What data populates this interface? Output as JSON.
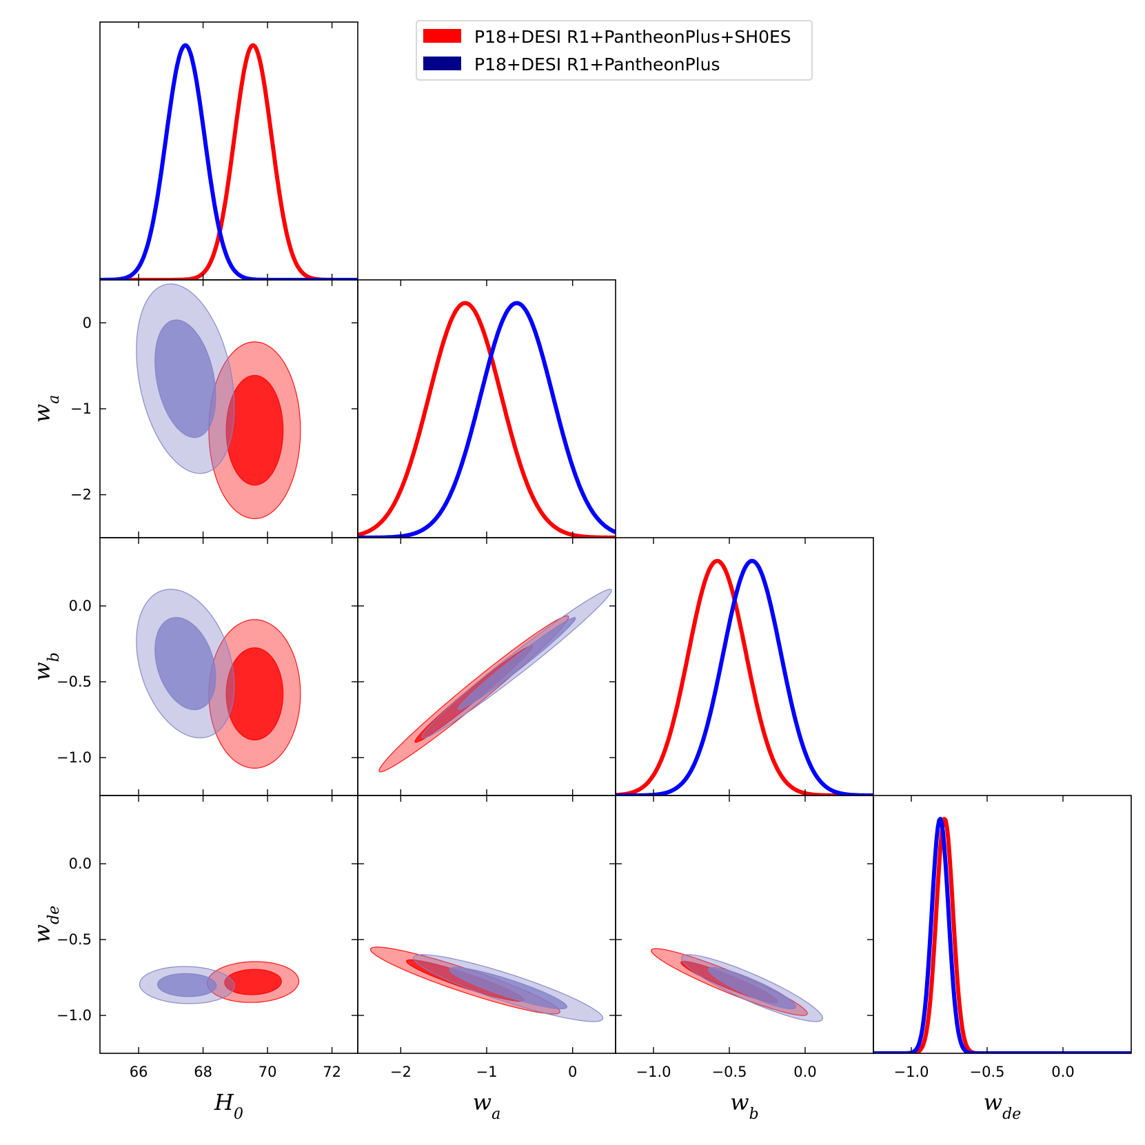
{
  "colors": {
    "series_a": "#ff0000",
    "series_b": "#0000ff",
    "series_b_legend": "#00008b",
    "series_b_fill": "#8080c8",
    "axes": "#000000",
    "legend_border": "#cccccc"
  },
  "chart_data": {
    "type": "triangle-corner-plot",
    "title": "",
    "legend": {
      "location": "top-center",
      "entries": [
        "P18+DESI R1+PantheonPlus+SH0ES",
        "P18+DESI R1+PantheonPlus"
      ]
    },
    "parameters": [
      {
        "key": "H0",
        "symbol": "H",
        "sub": "0",
        "range": [
          64.8,
          72.8
        ],
        "ticks": [
          66,
          68,
          70,
          72
        ],
        "tick_labels": [
          "66",
          "68",
          "70",
          "72"
        ]
      },
      {
        "key": "wa",
        "symbol": "w",
        "sub": "a",
        "range": [
          -2.5,
          0.5
        ],
        "ticks": [
          -2,
          -1,
          0
        ],
        "tick_labels": [
          "−2",
          "−1",
          "0"
        ]
      },
      {
        "key": "wb",
        "symbol": "w",
        "sub": "b",
        "range": [
          -1.25,
          0.45
        ],
        "ticks": [
          -1.0,
          -0.5,
          0.0
        ],
        "tick_labels": [
          "−1.0",
          "−0.5",
          "0.0"
        ]
      },
      {
        "key": "wde",
        "symbol": "w",
        "sub": "de",
        "range": [
          -1.25,
          0.45
        ],
        "ticks": [
          -1.0,
          -0.5,
          0.0
        ],
        "tick_labels": [
          "−1.0",
          "−0.5",
          "0.0"
        ]
      }
    ],
    "series": [
      {
        "name": "P18+DESI R1+PantheonPlus+SH0ES",
        "marginals": {
          "H0": {
            "mean": 69.55,
            "sd": 0.58
          },
          "wa": {
            "mean": -1.25,
            "sd": 0.42
          },
          "wb": {
            "mean": -0.58,
            "sd": 0.19
          },
          "wde": {
            "mean": -0.78,
            "sd": 0.055
          }
        },
        "contours_68_95": [
          {
            "x": "H0",
            "y": "wa",
            "cx": 69.6,
            "cy": -1.25,
            "sx": 0.58,
            "sy": 0.42,
            "rho": 0.0
          },
          {
            "x": "H0",
            "y": "wb",
            "cx": 69.6,
            "cy": -0.58,
            "sx": 0.58,
            "sy": 0.2,
            "rho": 0.0
          },
          {
            "x": "H0",
            "y": "wde",
            "cx": 69.55,
            "cy": -0.78,
            "sx": 0.58,
            "sy": 0.055,
            "rho": 0.05
          },
          {
            "x": "wa",
            "y": "wb",
            "cx": -1.15,
            "cy": -0.58,
            "sx": 0.45,
            "sy": 0.21,
            "rho": 0.985
          },
          {
            "x": "wa",
            "y": "wde",
            "cx": -1.25,
            "cy": -0.77,
            "sx": 0.45,
            "sy": 0.09,
            "rho": -0.93
          },
          {
            "x": "wb",
            "y": "wde",
            "cx": -0.5,
            "cy": -0.78,
            "sx": 0.21,
            "sy": 0.09,
            "rho": -0.94
          }
        ]
      },
      {
        "name": "P18+DESI R1+PantheonPlus",
        "marginals": {
          "H0": {
            "mean": 67.45,
            "sd": 0.6
          },
          "wa": {
            "mean": -0.65,
            "sd": 0.42
          },
          "wb": {
            "mean": -0.35,
            "sd": 0.19
          },
          "wde": {
            "mean": -0.81,
            "sd": 0.055
          }
        },
        "contours_68_95": [
          {
            "x": "H0",
            "y": "wa",
            "cx": 67.45,
            "cy": -0.65,
            "sx": 0.62,
            "sy": 0.45,
            "rho": -0.3
          },
          {
            "x": "H0",
            "y": "wb",
            "cx": 67.45,
            "cy": -0.38,
            "sx": 0.62,
            "sy": 0.2,
            "rho": -0.3
          },
          {
            "x": "H0",
            "y": "wde",
            "cx": 67.5,
            "cy": -0.8,
            "sx": 0.6,
            "sy": 0.05,
            "rho": -0.05
          },
          {
            "x": "wa",
            "y": "wb",
            "cx": -0.65,
            "cy": -0.38,
            "sx": 0.45,
            "sy": 0.2,
            "rho": 0.985
          },
          {
            "x": "wa",
            "y": "wde",
            "cx": -0.75,
            "cy": -0.82,
            "sx": 0.45,
            "sy": 0.09,
            "rho": -0.9
          },
          {
            "x": "wb",
            "y": "wde",
            "cx": -0.35,
            "cy": -0.82,
            "sx": 0.19,
            "sy": 0.09,
            "rho": -0.9
          }
        ]
      }
    ]
  }
}
